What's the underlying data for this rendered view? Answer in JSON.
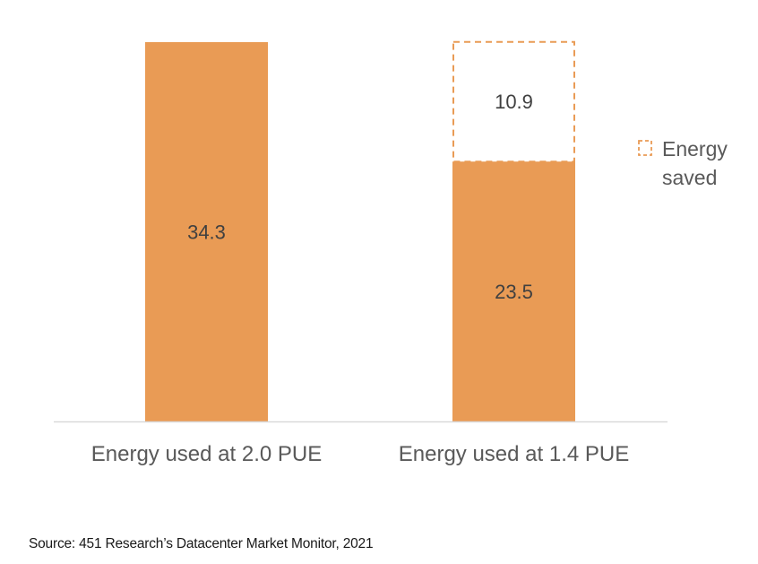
{
  "chart_data": {
    "type": "bar",
    "stacked": true,
    "categories": [
      "Energy used at 2.0 PUE",
      "Energy used at 1.4 PUE"
    ],
    "series": [
      {
        "name": "",
        "values": [
          34.3,
          23.5
        ],
        "labels": [
          "34.3",
          "23.5"
        ],
        "style": "solid"
      },
      {
        "name": "Energy saved",
        "values": [
          0,
          10.9
        ],
        "labels": [
          "",
          "10.9"
        ],
        "style": "dashed-outline"
      }
    ],
    "legend": {
      "label_line1": "Energy",
      "label_line2": "saved",
      "placement": "right"
    },
    "ylim": [
      0,
      34.3
    ],
    "grid": false,
    "colors": {
      "bar": "#E99B55",
      "saved_outline": "#E99B55",
      "axis": "#d9d9d9",
      "text": "#595959",
      "label": "#404040"
    }
  },
  "footer": {
    "source": "Source: 451 Research’s Datacenter Market Monitor, 2021"
  }
}
